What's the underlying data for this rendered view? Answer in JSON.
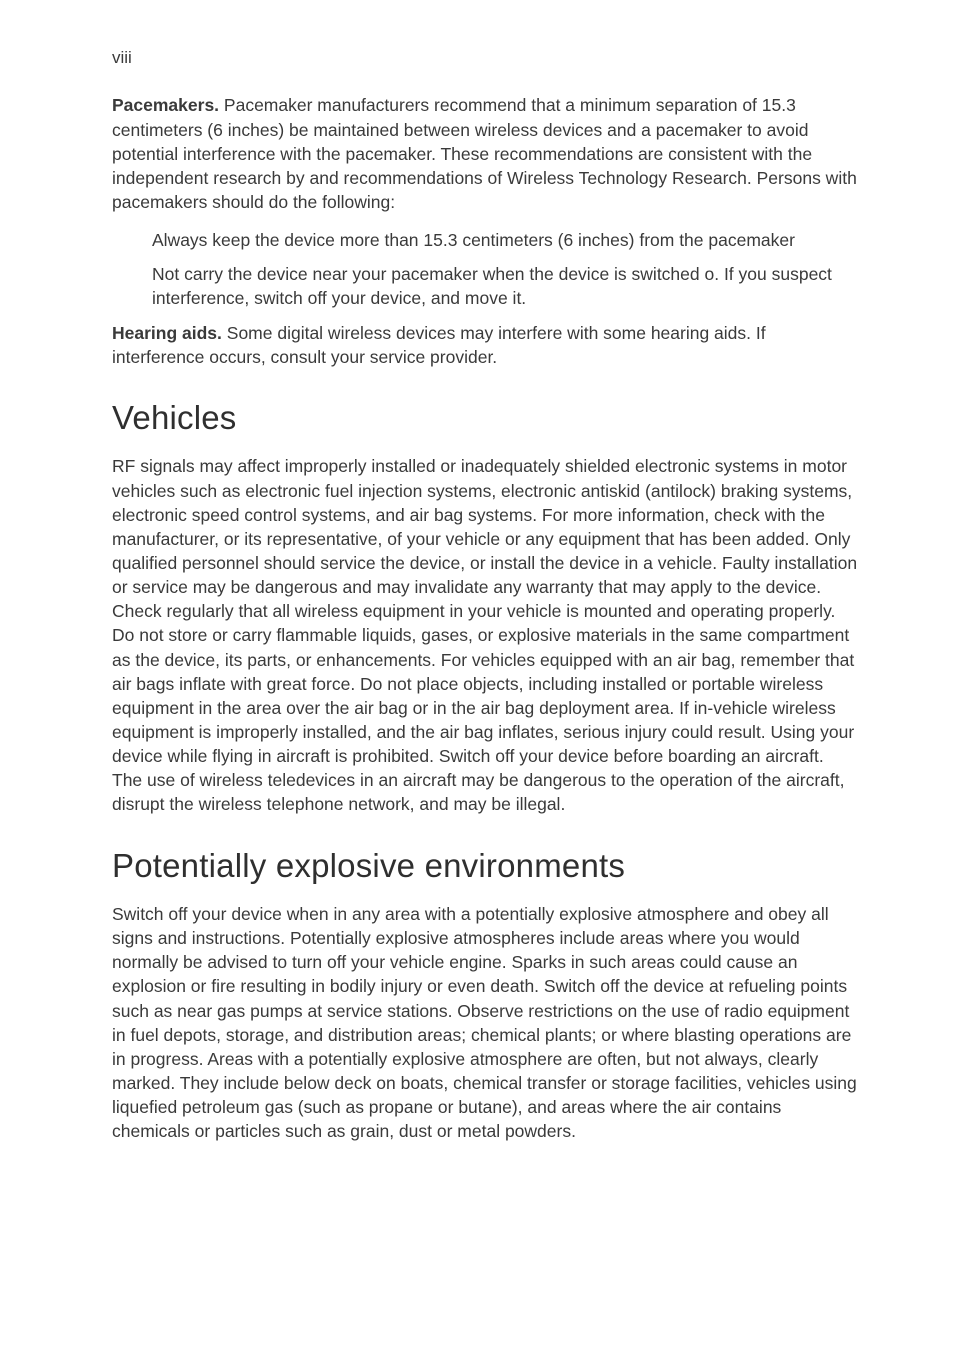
{
  "page": {
    "number": "viii",
    "font_color": "#3a3a3a",
    "background_color": "#ffffff"
  },
  "intro": {
    "pacemakers_label": "Pacemakers.",
    "pacemakers_text": " Pacemaker manufacturers recommend that a minimum separation of 15.3 centimeters (6 inches) be maintained between wireless devices and a pacemaker to avoid potential interference with the pacemaker. These recommendations are consistent with the independent research by and recommendations of Wireless Technology Research. Persons with pacemakers should do the following:",
    "bullet1": "Always keep the device more than 15.3 centimeters (6 inches) from the pacemaker",
    "bullet2": "Not carry the device near your pacemaker when the device is switched o. If you suspect interference, switch off your device, and move it.",
    "hearing_label": "Hearing aids.",
    "hearing_text": "  Some digital wireless devices may interfere with some hearing aids. If interference occurs, consult your service provider."
  },
  "vehicles": {
    "heading": "Vehicles",
    "body": "RF signals may affect improperly installed or inadequately shielded electronic systems in motor vehicles such as electronic fuel injection systems, electronic antiskid (antilock) braking systems, electronic speed control systems, and air bag systems. For more information, check with the manufacturer, or its representative, of your vehicle or any equipment that has been added. Only qualified personnel should service the device, or install the device in a vehicle. Faulty installation or service may be dangerous and may invalidate any warranty that may apply to the device. Check regularly that all wireless equipment in your vehicle is mounted and operating properly. Do not store or carry flammable liquids, gases, or explosive materials in the same compartment as the device, its parts, or enhancements. For vehicles equipped with an air bag, remember that air bags inflate with great force. Do not place objects, including installed or portable wireless equipment in the area over the air bag or in the air bag deployment area. If in-vehicle wireless equipment is improperly installed, and the air bag inflates, serious injury could result. Using your device while flying in aircraft is prohibited. Switch off your device before boarding an aircraft. The use of wireless teledevices in an aircraft may be dangerous to the operation of the aircraft, disrupt the wireless telephone network, and may be illegal."
  },
  "explosive": {
    "heading": "Potentially explosive environments",
    "body": "Switch off your device when in any area with a potentially explosive atmosphere and obey all signs and instructions. Potentially explosive atmospheres include areas where you would normally be advised to turn off your vehicle engine. Sparks in such areas could cause an explosion or fire resulting in bodily injury or even death. Switch off the device at refueling points such as near gas pumps at service stations. Observe restrictions on the use of radio equipment in fuel depots, storage, and distribution areas; chemical plants; or where blasting operations are in progress. Areas with a potentially explosive atmosphere are often, but not always, clearly marked. They include below deck on boats, chemical transfer or storage facilities, vehicles using liquefied petroleum gas (such as propane or butane), and areas where the air contains chemicals or particles such as grain, dust or metal powders."
  },
  "typography": {
    "body_fontsize_pt": 13,
    "heading_fontsize_pt": 25,
    "bold_weight": 700,
    "regular_weight": 400,
    "line_height": 1.38
  }
}
